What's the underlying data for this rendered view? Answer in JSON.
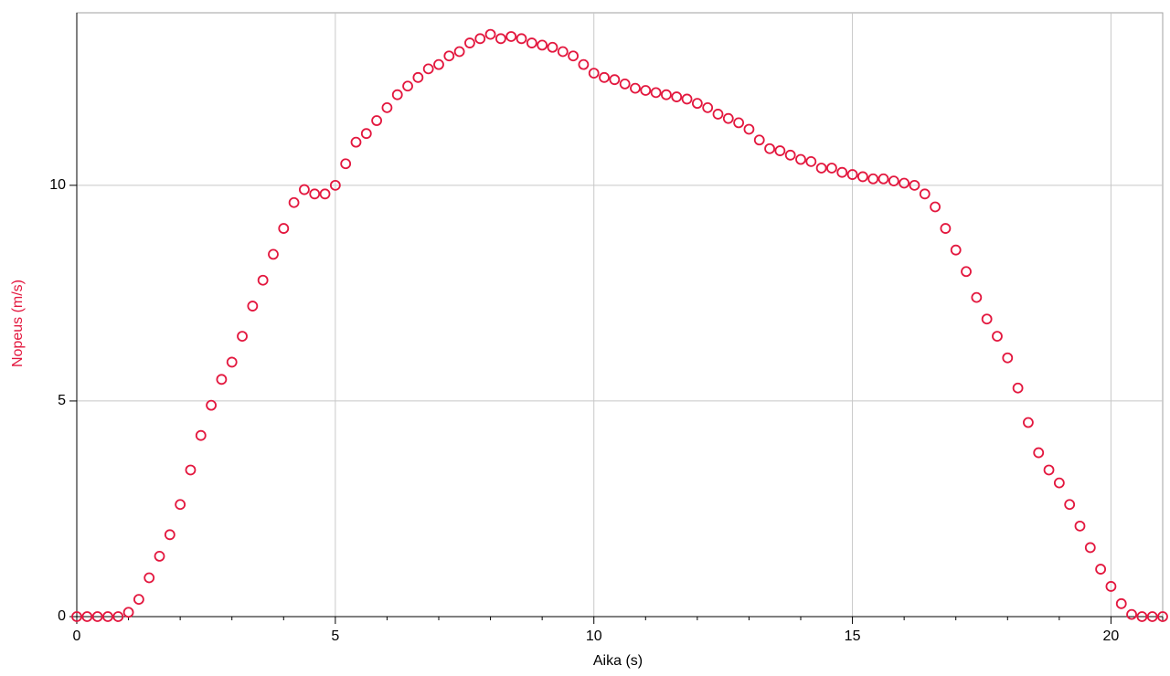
{
  "chart_data": {
    "type": "scatter",
    "x_label": "Aika (s)",
    "y_label": "Nopeus (m/s)",
    "xlim": [
      0,
      21
    ],
    "ylim": [
      0,
      14
    ],
    "xticks": [
      0,
      5,
      10,
      15,
      20
    ],
    "yticks": [
      0,
      5,
      10
    ],
    "xminorticks": [
      1,
      2,
      3,
      4,
      6,
      7,
      8,
      9,
      11,
      12,
      13,
      14,
      16,
      17,
      18,
      19,
      21
    ],
    "grid": true,
    "series": [
      {
        "name": "Nopeus (m/s)",
        "color": "#e3173e",
        "x": [
          0,
          0.2,
          0.4,
          0.6,
          0.8,
          1,
          1.2,
          1.4,
          1.6,
          1.8,
          2,
          2.2,
          2.4,
          2.6,
          2.8,
          3,
          3.2,
          3.4,
          3.6,
          3.8,
          4,
          4.2,
          4.4,
          4.6,
          4.8,
          5,
          5.2,
          5.4,
          5.6,
          5.8,
          6,
          6.2,
          6.4,
          6.6,
          6.8,
          7,
          7.2,
          7.4,
          7.6,
          7.8,
          8,
          8.2,
          8.4,
          8.6,
          8.8,
          9,
          9.2,
          9.4,
          9.6,
          9.8,
          10,
          10.2,
          10.4,
          10.6,
          10.8,
          11,
          11.2,
          11.4,
          11.6,
          11.8,
          12,
          12.2,
          12.4,
          12.6,
          12.8,
          13,
          13.2,
          13.4,
          13.6,
          13.8,
          14,
          14.2,
          14.4,
          14.6,
          14.8,
          15,
          15.2,
          15.4,
          15.6,
          15.8,
          16,
          16.2,
          16.4,
          16.6,
          16.8,
          17,
          17.2,
          17.4,
          17.6,
          17.8,
          18,
          18.2,
          18.4,
          18.6,
          18.8,
          19,
          19.2,
          19.4,
          19.6,
          19.8,
          20,
          20.2,
          20.4,
          20.6,
          20.8,
          21
        ],
        "values": [
          0,
          0,
          0,
          0,
          0,
          0.1,
          0.4,
          0.9,
          1.4,
          1.9,
          2.6,
          3.4,
          4.2,
          4.9,
          5.5,
          5.9,
          6.5,
          7.2,
          7.8,
          8.4,
          9.0,
          9.6,
          9.9,
          9.8,
          9.8,
          10.0,
          10.5,
          11.0,
          11.2,
          11.5,
          11.8,
          12.1,
          12.3,
          12.5,
          12.7,
          12.8,
          13.0,
          13.1,
          13.3,
          13.4,
          13.5,
          13.4,
          13.45,
          13.4,
          13.3,
          13.25,
          13.2,
          13.1,
          13.0,
          12.8,
          12.6,
          12.5,
          12.45,
          12.35,
          12.25,
          12.2,
          12.15,
          12.1,
          12.05,
          12.0,
          11.9,
          11.8,
          11.65,
          11.55,
          11.45,
          11.3,
          11.05,
          10.85,
          10.8,
          10.7,
          10.6,
          10.55,
          10.4,
          10.4,
          10.3,
          10.25,
          10.2,
          10.15,
          10.15,
          10.1,
          10.05,
          10.0,
          9.8,
          9.5,
          9.0,
          8.5,
          8.0,
          7.4,
          6.9,
          6.5,
          6.0,
          5.3,
          4.5,
          3.8,
          3.4,
          3.1,
          2.6,
          2.1,
          1.6,
          1.1,
          0.7,
          0.3,
          0.05,
          0,
          0,
          0
        ]
      }
    ]
  }
}
